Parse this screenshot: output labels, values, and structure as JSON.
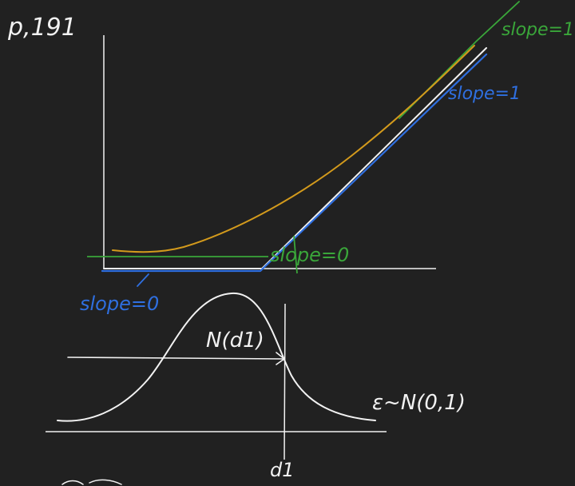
{
  "colors": {
    "background": "#212121",
    "white": "#f2f2f2",
    "green": "#3aa63a",
    "blue": "#2f6fe0",
    "orange": "#d39a1c"
  },
  "labels": {
    "corner_note": "p,191",
    "slope_green_top": "slope=1",
    "slope_blue_top": "slope=1",
    "slope_green_bottom": "slope=0",
    "slope_blue_bottom": "slope=0",
    "normal_label": "N(d1)",
    "distribution_label": "ε~N(0,1)",
    "d1_label": "d1"
  }
}
